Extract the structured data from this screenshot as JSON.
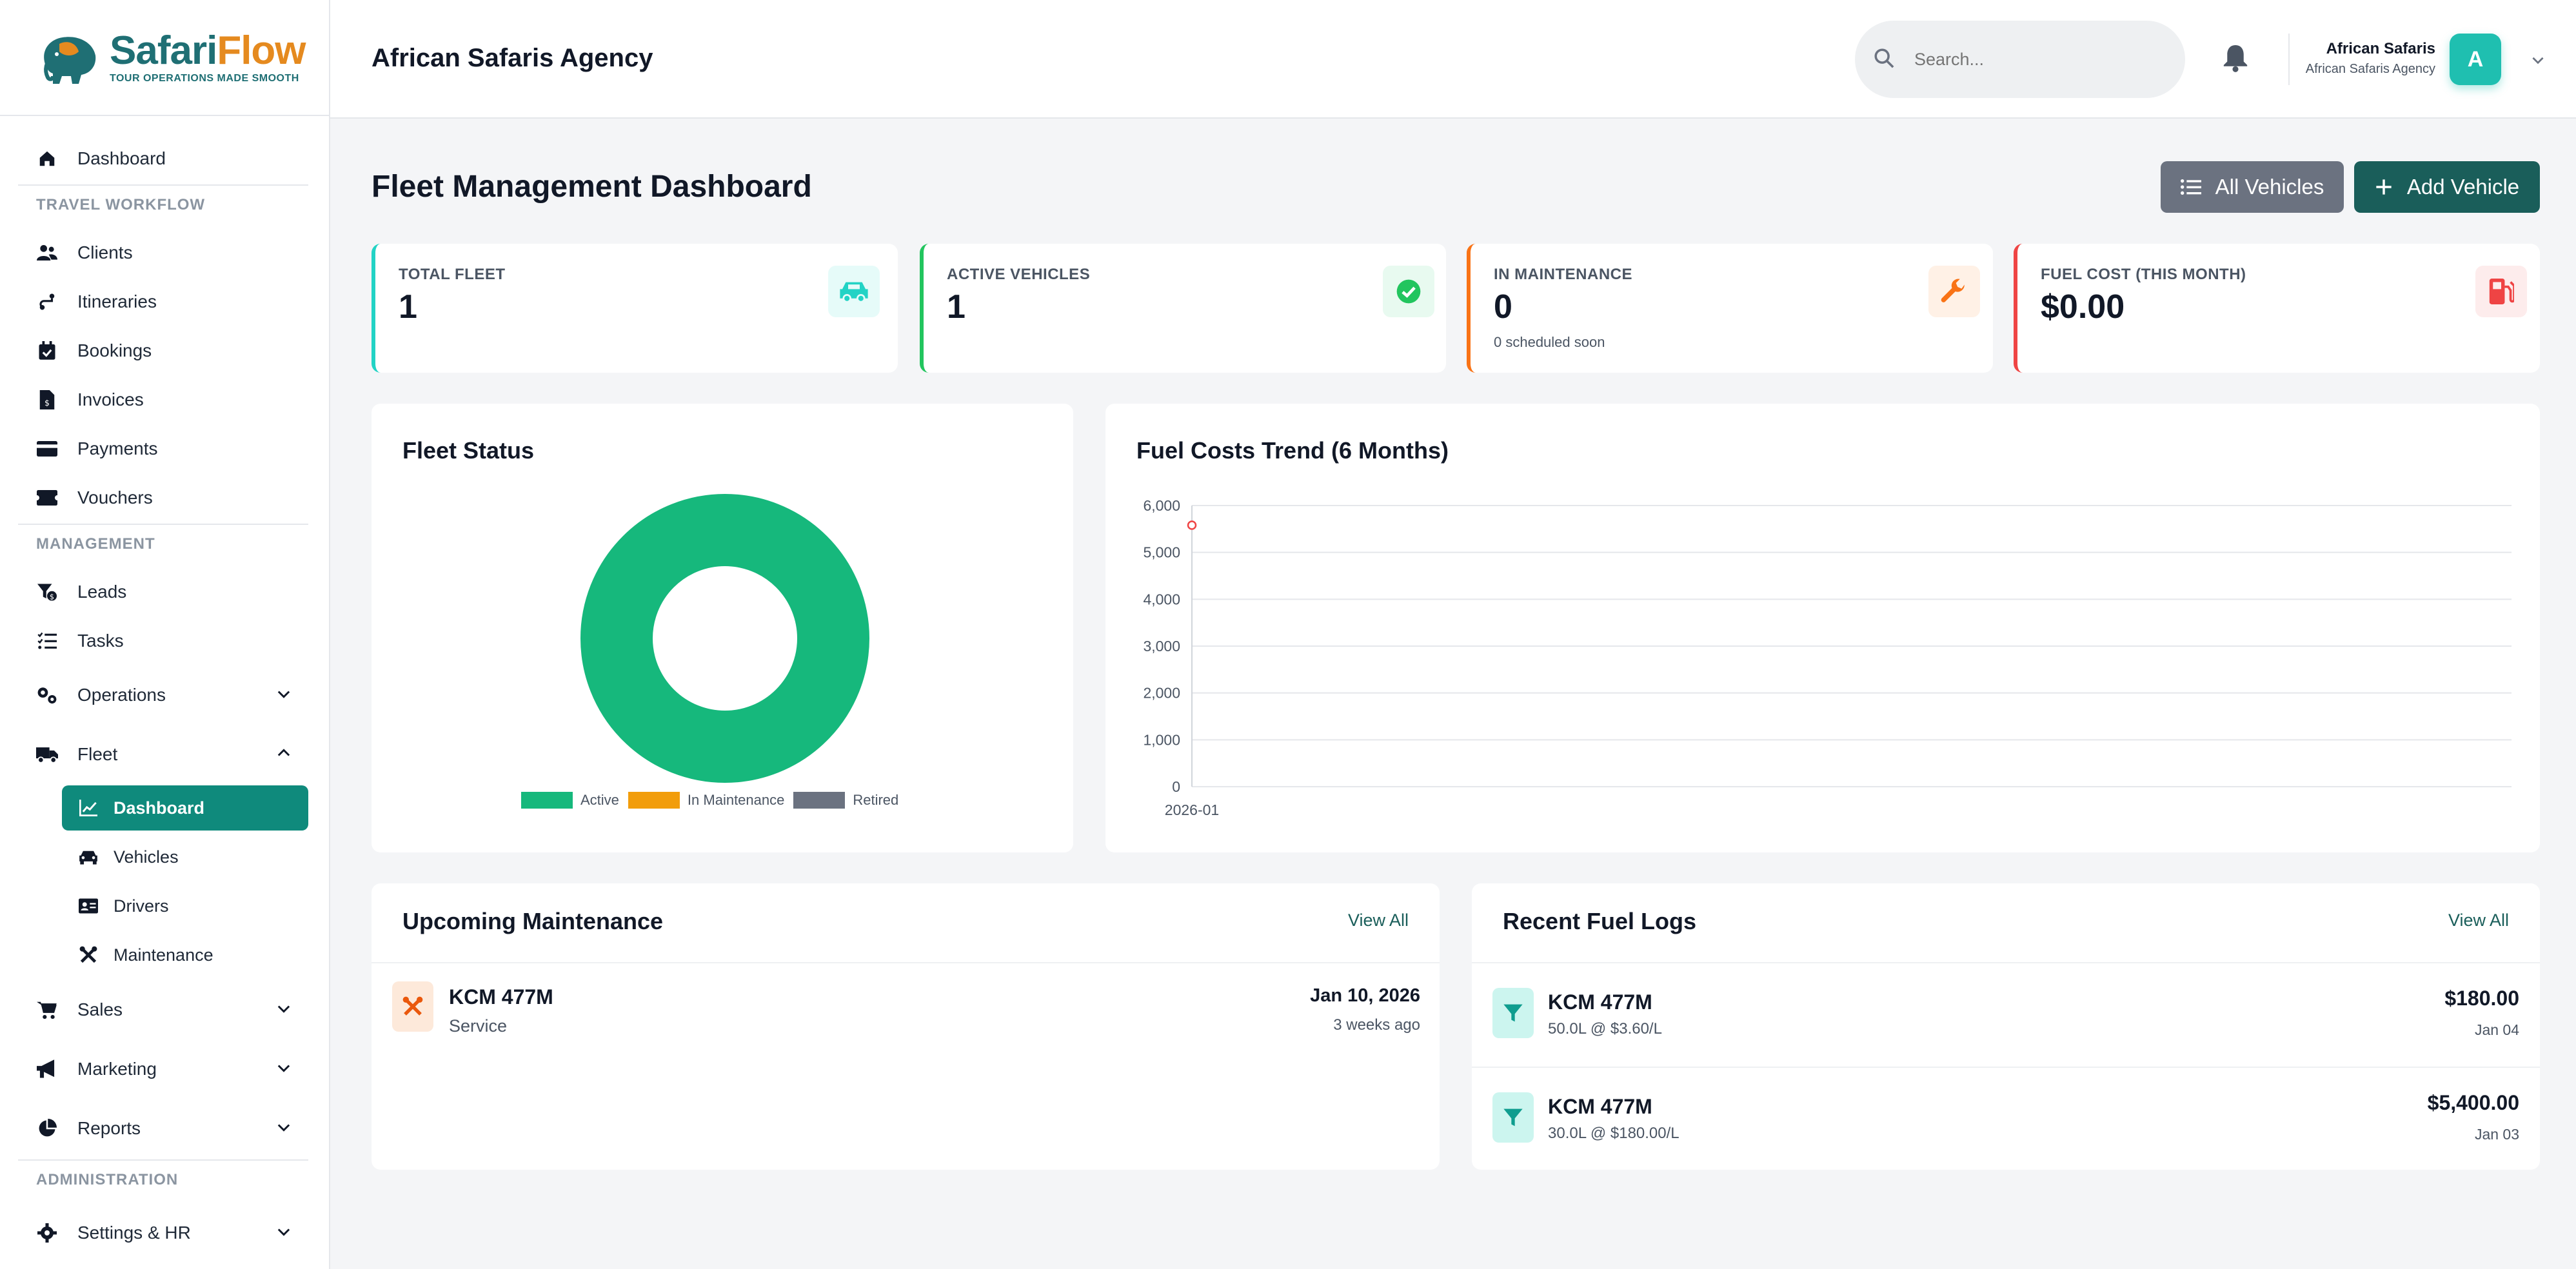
{
  "brand": {
    "name_part1": "Safari",
    "name_part2": "Flow",
    "tagline": "TOUR OPERATIONS MADE SMOOTH",
    "color_primary": "#1f6f74",
    "color_accent": "#e58a1f"
  },
  "sidebar": {
    "dashboard": "Dashboard",
    "section_travel": "TRAVEL WORKFLOW",
    "travel_items": [
      "Clients",
      "Itineraries",
      "Bookings",
      "Invoices",
      "Payments",
      "Vouchers"
    ],
    "section_management": "MANAGEMENT",
    "management_items": [
      "Leads",
      "Tasks"
    ],
    "operations": "Operations",
    "fleet": "Fleet",
    "fleet_sub": [
      "Dashboard",
      "Vehicles",
      "Drivers",
      "Maintenance"
    ],
    "sales": "Sales",
    "marketing": "Marketing",
    "reports": "Reports",
    "section_admin": "ADMINISTRATION",
    "settings": "Settings & HR",
    "active_color": "#0f8a7c"
  },
  "header": {
    "agency": "African Safaris Agency",
    "search_placeholder": "Search...",
    "user_name": "African Safaris",
    "user_org": "African Safaris Agency",
    "avatar_letter": "A",
    "avatar_color": "#1fbfb0"
  },
  "main": {
    "title": "Fleet Management Dashboard",
    "btn_all_vehicles": "All Vehicles",
    "btn_add_vehicle": "Add Vehicle",
    "stats": [
      {
        "label": "TOTAL FLEET",
        "value": "1",
        "sub": "",
        "color": "#22d3c5",
        "icon": "car-icon"
      },
      {
        "label": "ACTIVE VEHICLES",
        "value": "1",
        "sub": "",
        "color": "#22c55e",
        "icon": "check-circle-icon"
      },
      {
        "label": "IN MAINTENANCE",
        "value": "0",
        "sub": "0 scheduled soon",
        "color": "#f97316",
        "icon": "wrench-icon"
      },
      {
        "label": "FUEL COST (THIS MONTH)",
        "value": "$0.00",
        "sub": "",
        "color": "#ef4444",
        "icon": "fuel-pump-icon"
      }
    ]
  },
  "fleet_status": {
    "title": "Fleet Status",
    "legend": [
      {
        "name": "Active",
        "color": "#16b87c"
      },
      {
        "name": "In Maintenance",
        "color": "#f29d0b"
      },
      {
        "name": "Retired",
        "color": "#6b7280"
      }
    ]
  },
  "fuel_trend": {
    "title": "Fuel Costs Trend (6 Months)"
  },
  "chart_data": [
    {
      "type": "pie",
      "title": "Fleet Status",
      "categories": [
        "Active",
        "In Maintenance",
        "Retired"
      ],
      "values": [
        1,
        0,
        0
      ],
      "colors": [
        "#16b87c",
        "#f29d0b",
        "#6b7280"
      ],
      "legend_position": "bottom"
    },
    {
      "type": "line",
      "title": "Fuel Costs Trend (6 Months)",
      "x": [
        "2026-01"
      ],
      "series": [
        {
          "values": [
            5580
          ],
          "color": "#ef4444"
        }
      ],
      "ylim": [
        0,
        6000
      ],
      "yticks": [
        "0",
        "1,000",
        "2,000",
        "3,000",
        "4,000",
        "5,000",
        "6,000"
      ],
      "grid": true
    }
  ],
  "maintenance": {
    "title": "Upcoming Maintenance",
    "view_all": "View All",
    "items": [
      {
        "vehicle": "KCM 477M",
        "type": "Service",
        "date": "Jan 10, 2026",
        "ago": "3 weeks ago"
      }
    ]
  },
  "fuel_logs": {
    "title": "Recent Fuel Logs",
    "view_all": "View All",
    "items": [
      {
        "vehicle": "KCM 477M",
        "detail": "50.0L @ $3.60/L",
        "amount": "$180.00",
        "date": "Jan 04"
      },
      {
        "vehicle": "KCM 477M",
        "detail": "30.0L @ $180.00/L",
        "amount": "$5,400.00",
        "date": "Jan 03"
      }
    ]
  }
}
